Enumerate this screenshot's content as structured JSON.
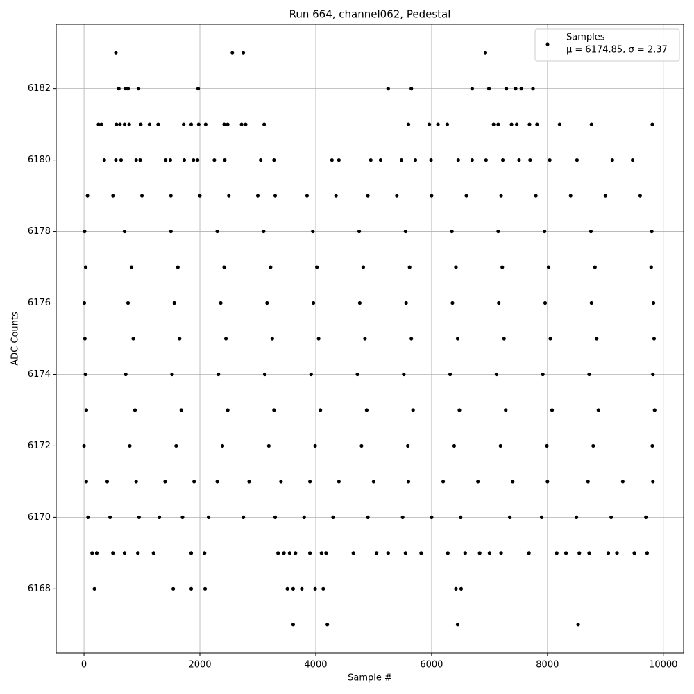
{
  "chart_data": {
    "type": "scatter",
    "title": "Run 664, channel062, Pedestal",
    "xlabel": "Sample #",
    "ylabel": "ADC Counts",
    "xlim": [
      -480,
      10350
    ],
    "ylim": [
      6166.2,
      6183.8
    ],
    "xticks": [
      0,
      2000,
      4000,
      6000,
      8000,
      10000
    ],
    "yticks": [
      6168,
      6170,
      6172,
      6174,
      6176,
      6178,
      6180,
      6182
    ],
    "grid": true,
    "legend_position": "upper right",
    "legend_note": "μ = 6174.85, σ = 2.37",
    "series": [
      {
        "name": "Samples",
        "color": "#000000",
        "x": [
          550,
          2560,
          2750,
          6930,
          600,
          720,
          760,
          940,
          1970,
          5250,
          5650,
          6700,
          6990,
          7290,
          7450,
          7550,
          7750,
          250,
          300,
          560,
          620,
          700,
          780,
          980,
          1130,
          1280,
          1720,
          1850,
          1980,
          2100,
          2420,
          2480,
          2720,
          2790,
          3110,
          5600,
          5960,
          6110,
          6270,
          7070,
          7150,
          7380,
          7470,
          7690,
          7820,
          8210,
          8760,
          9810,
          350,
          550,
          640,
          900,
          970,
          1410,
          1490,
          1730,
          1890,
          1960,
          2250,
          2430,
          3050,
          3280,
          4280,
          4400,
          4950,
          5120,
          5480,
          5720,
          5990,
          6460,
          6700,
          6940,
          7230,
          7510,
          7700,
          8040,
          8510,
          9120,
          9470,
          60,
          500,
          1000,
          1500,
          2000,
          2500,
          3000,
          3300,
          3850,
          4350,
          4900,
          5400,
          6000,
          6600,
          7200,
          7800,
          8400,
          9000,
          9600,
          10,
          700,
          1500,
          2300,
          3100,
          3950,
          4750,
          5550,
          6350,
          7150,
          7950,
          8750,
          9800,
          30,
          820,
          1620,
          2420,
          3220,
          4020,
          4820,
          5620,
          6420,
          7220,
          8020,
          8820,
          9790,
          5,
          760,
          1560,
          2360,
          3160,
          3960,
          4760,
          5560,
          6360,
          7160,
          7960,
          8760,
          9830,
          15,
          850,
          1650,
          2450,
          3250,
          4050,
          4850,
          5650,
          6450,
          7250,
          8050,
          8850,
          9840,
          25,
          720,
          1520,
          2320,
          3120,
          3920,
          4720,
          5520,
          6320,
          7120,
          7920,
          8720,
          9820,
          40,
          880,
          1680,
          2480,
          3280,
          4080,
          4880,
          5680,
          6480,
          7280,
          8080,
          8880,
          9850,
          0,
          790,
          1590,
          2390,
          3190,
          3990,
          4790,
          5590,
          6390,
          7190,
          7990,
          8790,
          9810,
          40,
          400,
          900,
          1400,
          1900,
          2300,
          2850,
          3400,
          3900,
          4400,
          5000,
          5600,
          6200,
          6800,
          7400,
          8000,
          8700,
          9300,
          9820,
          70,
          450,
          950,
          1300,
          1700,
          2150,
          2750,
          3300,
          3800,
          4300,
          4900,
          5500,
          6000,
          6500,
          7350,
          7900,
          8500,
          9100,
          9700,
          140,
          220,
          500,
          700,
          930,
          1200,
          1850,
          2080,
          3350,
          3450,
          3550,
          3650,
          3900,
          4100,
          4180,
          4650,
          5050,
          5250,
          5550,
          5820,
          6280,
          6580,
          6830,
          7000,
          7200,
          7680,
          8160,
          8320,
          8550,
          8720,
          9050,
          9200,
          9500,
          9720,
          180,
          1540,
          1850,
          2090,
          3510,
          3610,
          3760,
          3990,
          4130,
          6420,
          6510,
          3610,
          4200,
          6450,
          8530
        ],
        "values": [
          6183,
          6183,
          6183,
          6183,
          6182,
          6182,
          6182,
          6182,
          6182,
          6182,
          6182,
          6182,
          6182,
          6182,
          6182,
          6182,
          6182,
          6181,
          6181,
          6181,
          6181,
          6181,
          6181,
          6181,
          6181,
          6181,
          6181,
          6181,
          6181,
          6181,
          6181,
          6181,
          6181,
          6181,
          6181,
          6181,
          6181,
          6181,
          6181,
          6181,
          6181,
          6181,
          6181,
          6181,
          6181,
          6181,
          6181,
          6181,
          6180,
          6180,
          6180,
          6180,
          6180,
          6180,
          6180,
          6180,
          6180,
          6180,
          6180,
          6180,
          6180,
          6180,
          6180,
          6180,
          6180,
          6180,
          6180,
          6180,
          6180,
          6180,
          6180,
          6180,
          6180,
          6180,
          6180,
          6180,
          6180,
          6180,
          6180,
          6179,
          6179,
          6179,
          6179,
          6179,
          6179,
          6179,
          6179,
          6179,
          6179,
          6179,
          6179,
          6179,
          6179,
          6179,
          6179,
          6179,
          6179,
          6179,
          6178,
          6178,
          6178,
          6178,
          6178,
          6178,
          6178,
          6178,
          6178,
          6178,
          6178,
          6178,
          6178,
          6177,
          6177,
          6177,
          6177,
          6177,
          6177,
          6177,
          6177,
          6177,
          6177,
          6177,
          6177,
          6177,
          6176,
          6176,
          6176,
          6176,
          6176,
          6176,
          6176,
          6176,
          6176,
          6176,
          6176,
          6176,
          6176,
          6175,
          6175,
          6175,
          6175,
          6175,
          6175,
          6175,
          6175,
          6175,
          6175,
          6175,
          6175,
          6175,
          6174,
          6174,
          6174,
          6174,
          6174,
          6174,
          6174,
          6174,
          6174,
          6174,
          6174,
          6174,
          6174,
          6173,
          6173,
          6173,
          6173,
          6173,
          6173,
          6173,
          6173,
          6173,
          6173,
          6173,
          6173,
          6173,
          6172,
          6172,
          6172,
          6172,
          6172,
          6172,
          6172,
          6172,
          6172,
          6172,
          6172,
          6172,
          6172,
          6171,
          6171,
          6171,
          6171,
          6171,
          6171,
          6171,
          6171,
          6171,
          6171,
          6171,
          6171,
          6171,
          6171,
          6171,
          6171,
          6171,
          6171,
          6171,
          6170,
          6170,
          6170,
          6170,
          6170,
          6170,
          6170,
          6170,
          6170,
          6170,
          6170,
          6170,
          6170,
          6170,
          6170,
          6170,
          6170,
          6170,
          6170,
          6169,
          6169,
          6169,
          6169,
          6169,
          6169,
          6169,
          6169,
          6169,
          6169,
          6169,
          6169,
          6169,
          6169,
          6169,
          6169,
          6169,
          6169,
          6169,
          6169,
          6169,
          6169,
          6169,
          6169,
          6169,
          6169,
          6169,
          6169,
          6169,
          6169,
          6169,
          6169,
          6169,
          6169,
          6168,
          6168,
          6168,
          6168,
          6168,
          6168,
          6168,
          6168,
          6168,
          6168,
          6168,
          6167,
          6167,
          6167,
          6167
        ]
      }
    ]
  }
}
